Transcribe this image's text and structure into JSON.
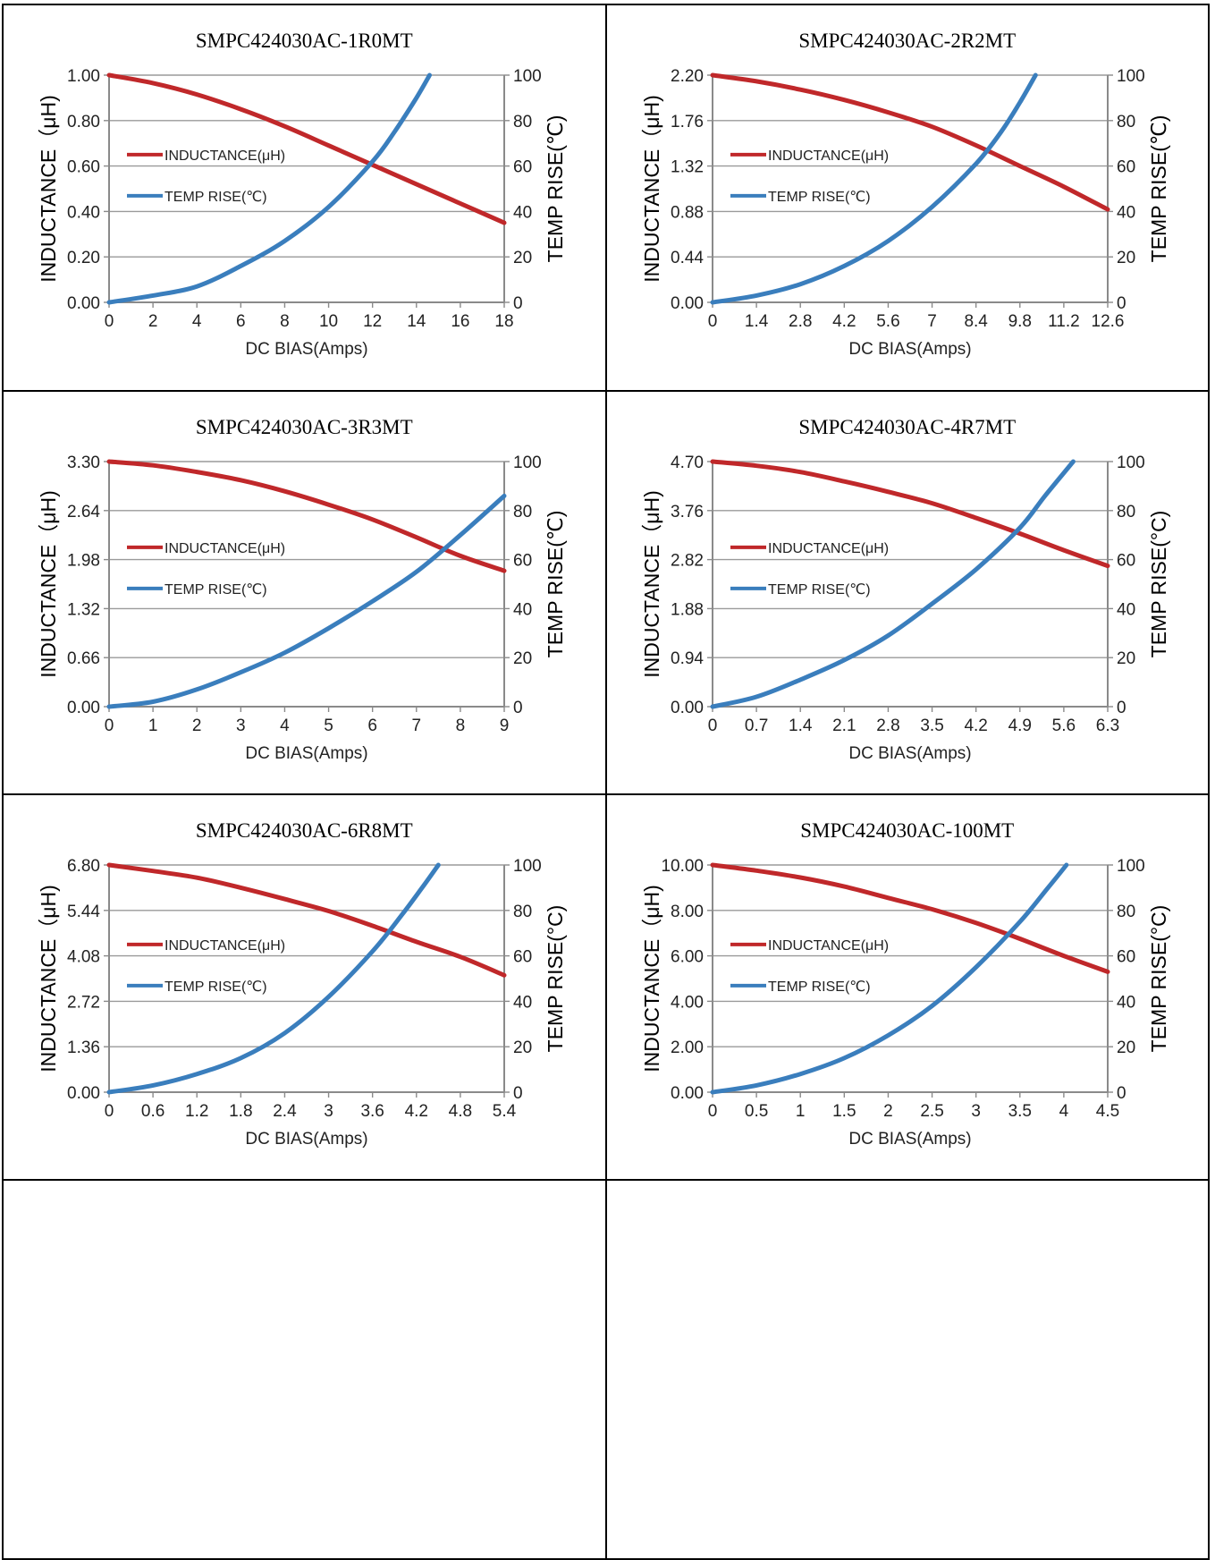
{
  "colors": {
    "inductance": "#c0282a",
    "temp": "#3a7ebd",
    "grid": "#9a9a9a",
    "axis": "#8a8a8a"
  },
  "chart_data": [
    {
      "type": "line",
      "title": "SMPC424030AC-1R0MT",
      "xlabel": "DC BIAS(Amps)",
      "ylabel": "INDUCTANCE（μH)",
      "y2label": "TEMP RISE(℃)",
      "xlim": [
        0,
        18
      ],
      "xticks": [
        "0",
        "2",
        "4",
        "6",
        "8",
        "10",
        "12",
        "14",
        "16",
        "18"
      ],
      "ylim": [
        0,
        1.0
      ],
      "yticks": [
        "0.00",
        "0.20",
        "0.40",
        "0.60",
        "0.80",
        "1.00"
      ],
      "y2lim": [
        0,
        100
      ],
      "y2ticks": [
        "0",
        "20",
        "40",
        "60",
        "80",
        "100"
      ],
      "legend_position": "left",
      "series": [
        {
          "name": "INDUCTANCE(μH)",
          "axis": "left",
          "x": [
            0,
            2,
            4,
            6,
            8,
            10,
            12,
            14,
            16,
            18
          ],
          "y": [
            1.0,
            0.965,
            0.915,
            0.85,
            0.775,
            0.69,
            0.605,
            0.52,
            0.435,
            0.35
          ]
        },
        {
          "name": "TEMP RISE(℃)",
          "axis": "right",
          "x": [
            0,
            2,
            4,
            6,
            8,
            10,
            12,
            13,
            14,
            14.6
          ],
          "y": [
            0,
            3,
            7,
            16,
            27,
            42,
            62,
            75,
            90,
            100
          ]
        }
      ]
    },
    {
      "type": "line",
      "title": "SMPC424030AC-2R2MT",
      "xlabel": "DC BIAS(Amps)",
      "ylabel": "INDUCTANCE（μH)",
      "y2label": "TEMP RISE(℃)",
      "xlim": [
        0,
        12.6
      ],
      "xticks": [
        "0",
        "1.4",
        "2.8",
        "4.2",
        "5.6",
        "7",
        "8.4",
        "9.8",
        "11.2",
        "12.6"
      ],
      "ylim": [
        0,
        2.2
      ],
      "yticks": [
        "0.00",
        "0.44",
        "0.88",
        "1.32",
        "1.76",
        "2.20"
      ],
      "y2lim": [
        0,
        100
      ],
      "y2ticks": [
        "0",
        "20",
        "40",
        "60",
        "80",
        "100"
      ],
      "legend_position": "left",
      "series": [
        {
          "name": "INDUCTANCE(μH)",
          "axis": "left",
          "x": [
            0,
            1.4,
            2.8,
            4.2,
            5.6,
            7,
            8.4,
            9.8,
            11.2,
            12.6
          ],
          "y": [
            2.2,
            2.14,
            2.06,
            1.96,
            1.84,
            1.7,
            1.52,
            1.32,
            1.12,
            0.9
          ]
        },
        {
          "name": "TEMP RISE(℃)",
          "axis": "right",
          "x": [
            0,
            1.4,
            2.8,
            4.2,
            5.6,
            7,
            8.4,
            9.2,
            9.8,
            10.3
          ],
          "y": [
            0,
            3,
            8,
            16,
            27,
            42,
            61,
            75,
            88,
            100
          ]
        }
      ]
    },
    {
      "type": "line",
      "title": "SMPC424030AC-3R3MT",
      "xlabel": "DC BIAS(Amps)",
      "ylabel": "INDUCTANCE（μH)",
      "y2label": "TEMP RISE(℃)",
      "xlim": [
        0,
        9
      ],
      "xticks": [
        "0",
        "1",
        "2",
        "3",
        "4",
        "5",
        "6",
        "7",
        "8",
        "9"
      ],
      "ylim": [
        0,
        3.3
      ],
      "yticks": [
        "0.00",
        "0.66",
        "1.32",
        "1.98",
        "2.64",
        "3.30"
      ],
      "y2lim": [
        0,
        100
      ],
      "y2ticks": [
        "0",
        "20",
        "40",
        "60",
        "80",
        "100"
      ],
      "legend_position": "left",
      "series": [
        {
          "name": "INDUCTANCE(μH)",
          "axis": "left",
          "x": [
            0,
            1,
            2,
            3,
            4,
            5,
            6,
            7,
            8,
            9
          ],
          "y": [
            3.3,
            3.25,
            3.16,
            3.05,
            2.9,
            2.72,
            2.52,
            2.28,
            2.03,
            1.83
          ]
        },
        {
          "name": "TEMP RISE(℃)",
          "axis": "right",
          "x": [
            0,
            1,
            2,
            3,
            4,
            5,
            6,
            7,
            8,
            9
          ],
          "y": [
            0,
            2,
            7,
            14,
            22,
            32,
            43,
            55,
            70,
            86
          ]
        }
      ]
    },
    {
      "type": "line",
      "title": "SMPC424030AC-4R7MT",
      "xlabel": "DC BIAS(Amps)",
      "ylabel": "INDUCTANCE（μH)",
      "y2label": "TEMP RISE(°C)",
      "xlim": [
        0,
        6.3
      ],
      "xticks": [
        "0",
        "0.7",
        "1.4",
        "2.1",
        "2.8",
        "3.5",
        "4.2",
        "4.9",
        "5.6",
        "6.3"
      ],
      "ylim": [
        0,
        4.7
      ],
      "yticks": [
        "0.00",
        "0.94",
        "1.88",
        "2.82",
        "3.76",
        "4.70"
      ],
      "y2lim": [
        0,
        100
      ],
      "y2ticks": [
        "0",
        "20",
        "40",
        "60",
        "80",
        "100"
      ],
      "legend_position": "left",
      "series": [
        {
          "name": "INDUCTANCE(μH)",
          "axis": "left",
          "x": [
            0,
            0.7,
            1.4,
            2.1,
            2.8,
            3.5,
            4.2,
            4.9,
            5.6,
            6.3
          ],
          "y": [
            4.7,
            4.62,
            4.5,
            4.32,
            4.12,
            3.9,
            3.62,
            3.32,
            3.0,
            2.7
          ]
        },
        {
          "name": "TEMP RISE(℃)",
          "axis": "right",
          "x": [
            0,
            0.7,
            1.4,
            2.1,
            2.8,
            3.5,
            4.2,
            4.9,
            5.3,
            5.75
          ],
          "y": [
            0,
            4,
            11,
            19,
            29,
            42,
            56,
            73,
            86,
            100
          ]
        }
      ]
    },
    {
      "type": "line",
      "title": "SMPC424030AC-6R8MT",
      "xlabel": "DC BIAS(Amps)",
      "ylabel": "INDUCTANCE（μH)",
      "y2label": "TEMP RISE(°C)",
      "xlim": [
        0,
        5.4
      ],
      "xticks": [
        "0",
        "0.6",
        "1.2",
        "1.8",
        "2.4",
        "3",
        "3.6",
        "4.2",
        "4.8",
        "5.4"
      ],
      "ylim": [
        0,
        6.8
      ],
      "yticks": [
        "0.00",
        "1.36",
        "2.72",
        "4.08",
        "5.44",
        "6.80"
      ],
      "y2lim": [
        0,
        100
      ],
      "y2ticks": [
        "0",
        "20",
        "40",
        "60",
        "80",
        "100"
      ],
      "legend_position": "left",
      "series": [
        {
          "name": "INDUCTANCE(μH)",
          "axis": "left",
          "x": [
            0,
            0.6,
            1.2,
            1.8,
            2.4,
            3,
            3.6,
            4.2,
            4.8,
            5.4
          ],
          "y": [
            6.8,
            6.62,
            6.42,
            6.12,
            5.78,
            5.42,
            4.98,
            4.5,
            4.05,
            3.5
          ]
        },
        {
          "name": "TEMP RISE(℃)",
          "axis": "right",
          "x": [
            0,
            0.6,
            1.2,
            1.8,
            2.4,
            3,
            3.6,
            4.0,
            4.3,
            4.5
          ],
          "y": [
            0,
            3,
            8,
            15,
            26,
            42,
            62,
            78,
            91,
            100
          ]
        }
      ]
    },
    {
      "type": "line",
      "title": "SMPC424030AC-100MT",
      "xlabel": "DC BIAS(Amps)",
      "ylabel": "INDUCTANCE（μH)",
      "y2label": "TEMP RISE(°C)",
      "xlim": [
        0,
        4.5
      ],
      "xticks": [
        "0",
        "0.5",
        "1",
        "1.5",
        "2",
        "2.5",
        "3",
        "3.5",
        "4",
        "4.5"
      ],
      "ylim": [
        0,
        10
      ],
      "yticks": [
        "0.00",
        "2.00",
        "4.00",
        "6.00",
        "8.00",
        "10.00"
      ],
      "y2lim": [
        0,
        100
      ],
      "y2ticks": [
        "0",
        "20",
        "40",
        "60",
        "80",
        "100"
      ],
      "legend_position": "left",
      "series": [
        {
          "name": "INDUCTANCE(μH)",
          "axis": "left",
          "x": [
            0,
            0.5,
            1,
            1.5,
            2,
            2.5,
            3,
            3.5,
            4,
            4.5
          ],
          "y": [
            10.0,
            9.75,
            9.45,
            9.05,
            8.55,
            8.05,
            7.45,
            6.75,
            6.0,
            5.3
          ]
        },
        {
          "name": "TEMP RISE(℃)",
          "axis": "right",
          "x": [
            0,
            0.5,
            1,
            1.5,
            2,
            2.5,
            3,
            3.5,
            3.8,
            4.03
          ],
          "y": [
            0,
            3,
            8,
            15,
            25,
            38,
            55,
            75,
            89,
            100
          ]
        }
      ]
    }
  ]
}
